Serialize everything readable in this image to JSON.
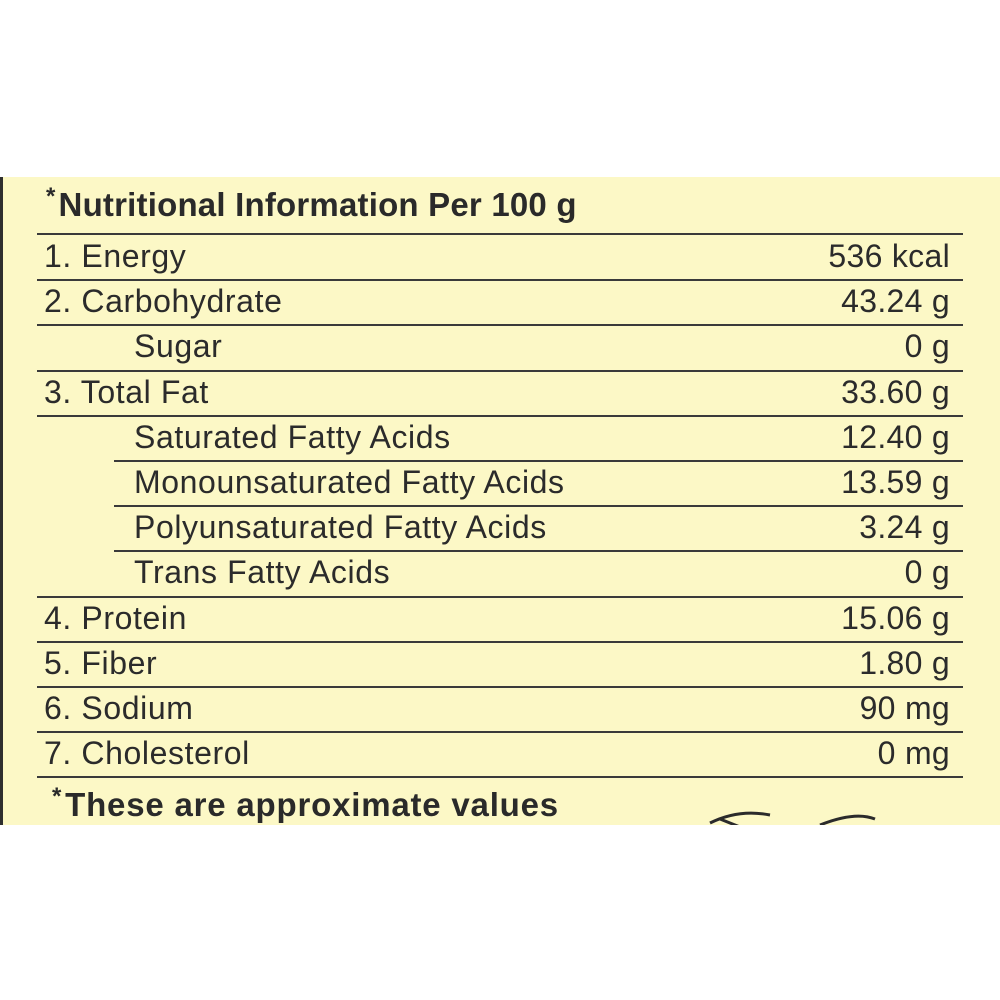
{
  "header": {
    "asterisk": "*",
    "title": "Nutritional Information Per 100 g"
  },
  "rows": [
    {
      "label": "1. Energy",
      "value": "536 kcal",
      "indent": false
    },
    {
      "label": "2. Carbohydrate",
      "value": "43.24 g",
      "indent": false
    },
    {
      "label": "Sugar",
      "value": "0 g",
      "indent": true
    },
    {
      "label": "3. Total Fat",
      "value": "33.60 g",
      "indent": false
    },
    {
      "label": "Saturated Fatty Acids",
      "value": "12.40 g",
      "indent": true
    },
    {
      "label": "Monounsaturated Fatty Acids",
      "value": "13.59 g",
      "indent": true
    },
    {
      "label": "Polyunsaturated Fatty Acids",
      "value": "3.24 g",
      "indent": true
    },
    {
      "label": "Trans Fatty Acids",
      "value": "0 g",
      "indent": true
    },
    {
      "label": "4. Protein",
      "value": "15.06 g",
      "indent": false
    },
    {
      "label": "5. Fiber",
      "value": "1.80 g",
      "indent": false
    },
    {
      "label": "6. Sodium",
      "value": "90 mg",
      "indent": false
    },
    {
      "label": "7. Cholesterol",
      "value": "0 mg",
      "indent": false
    }
  ],
  "footer": {
    "asterisk": "*",
    "note": "These are approximate values"
  },
  "colors": {
    "panel_background": "#fcf8c6",
    "text": "#2b2b2b",
    "rule": "#3a3a3a"
  }
}
